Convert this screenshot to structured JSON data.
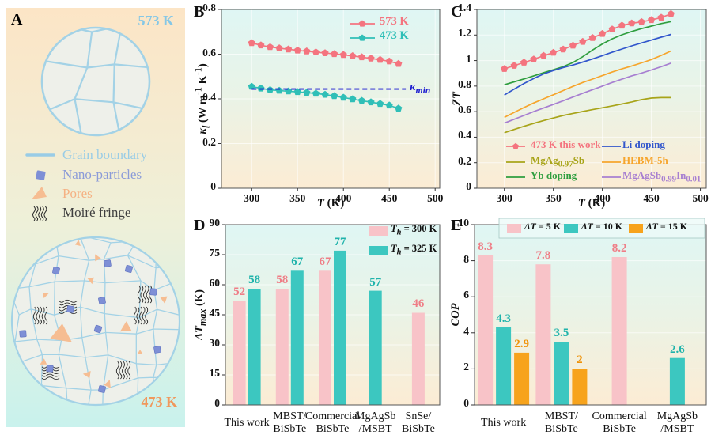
{
  "style": {
    "page_bg": "#ffffff",
    "plot_bg": [
      "#dff6f4",
      "#eaf3e6",
      "#fcecd4"
    ],
    "panel_a_bg": [
      "#fce5c6",
      "#eef0d9",
      "#c9f2ed"
    ],
    "frame_color": "#555555",
    "grid_color": "#ffffff"
  },
  "panel_a": {
    "label": "A",
    "top_circle_label": "573 K",
    "top_label_color": "#85c7e6",
    "bottom_circle_label": "473 K",
    "bottom_label_color": "#f0985c",
    "boundary_color": "#a3d2e6",
    "grain_fill": "#eef0ea",
    "particle_color": "#7e8fd6",
    "pore_color": "#f6bd92",
    "fringe_color": "#2a2a2a",
    "legend": [
      {
        "label": "Grain boundary",
        "color": "#99cce6",
        "icon": "line"
      },
      {
        "label": "Nano-particles",
        "color": "#8b9bd8",
        "icon": "square"
      },
      {
        "label": "Pores",
        "color": "#f5b183",
        "icon": "triangle"
      },
      {
        "label": "Moiré fringe",
        "color": "#3f3f3f",
        "icon": "waves"
      }
    ]
  },
  "chart_data": [
    {
      "id": "b",
      "panel_label": "B",
      "type": "line",
      "xlabel": "<i>T</i> (K)",
      "ylabel": "<i>κ<sub>l</sub></i> (W m<sup>-1</sup> K<sup>-1</sup>)",
      "xlim": [
        267,
        505
      ],
      "ylim": [
        0,
        0.8
      ],
      "xticks": [
        300,
        350,
        400,
        450,
        500
      ],
      "yticks": [
        0,
        0.2,
        0.4,
        0.6,
        0.8
      ],
      "grid": true,
      "legend_position": "top-right",
      "x": [
        300,
        310,
        320,
        330,
        340,
        350,
        360,
        370,
        380,
        390,
        400,
        410,
        420,
        430,
        440,
        450,
        460
      ],
      "series": [
        {
          "name": "573 K",
          "color": "#f4747f",
          "marker": "pentagon",
          "values": [
            0.65,
            0.64,
            0.632,
            0.627,
            0.622,
            0.617,
            0.613,
            0.609,
            0.605,
            0.601,
            0.597,
            0.592,
            0.587,
            0.581,
            0.575,
            0.568,
            0.557
          ]
        },
        {
          "name": "473 K",
          "color": "#2fbfb7",
          "marker": "pentagon",
          "values": [
            0.455,
            0.447,
            0.44,
            0.437,
            0.434,
            0.431,
            0.428,
            0.424,
            0.419,
            0.413,
            0.406,
            0.399,
            0.392,
            0.385,
            0.378,
            0.371,
            0.357
          ]
        }
      ],
      "annotations": [
        {
          "type": "hline",
          "label": "<i>κ<sub>min</sub></i>",
          "y": 0.444,
          "x1": 300,
          "x2": 468,
          "color": "#1b1bd0",
          "style": "dashed"
        }
      ]
    },
    {
      "id": "c",
      "panel_label": "C",
      "type": "line",
      "xlabel": "<i>T</i> (K)",
      "ylabel": "<i>ZT</i>",
      "xlim": [
        272,
        506
      ],
      "ylim": [
        0,
        1.4
      ],
      "xticks": [
        300,
        350,
        400,
        450,
        500
      ],
      "yticks": [
        0,
        0.2,
        0.4,
        0.6,
        0.8,
        1,
        1.2,
        1.4
      ],
      "grid": true,
      "legend_position": "bottom-two-columns",
      "x": [
        300,
        310,
        320,
        330,
        340,
        350,
        360,
        370,
        380,
        390,
        400,
        410,
        420,
        430,
        440,
        450,
        460,
        470
      ],
      "series": [
        {
          "name": "473 K this work",
          "color": "#f4747f",
          "marker": "pentagon",
          "values": [
            0.935,
            0.96,
            0.985,
            1.01,
            1.038,
            1.062,
            1.088,
            1.118,
            1.148,
            1.178,
            1.21,
            1.245,
            1.275,
            1.292,
            1.303,
            1.318,
            1.337,
            1.365
          ]
        },
        {
          "name": "MgAg<sub>0.97</sub>Sb",
          "color": "#a8a419",
          "values": [
            0.435,
            0.46,
            0.485,
            0.508,
            0.53,
            0.55,
            0.57,
            0.586,
            0.601,
            0.616,
            0.63,
            0.645,
            0.66,
            0.676,
            0.694,
            0.706,
            0.71,
            0.71
          ]
        },
        {
          "name": "Yb doping",
          "color": "#2f9e3f",
          "values": [
            0.81,
            0.833,
            0.856,
            0.88,
            0.905,
            0.928,
            0.952,
            0.985,
            1.03,
            1.082,
            1.13,
            1.17,
            1.202,
            1.228,
            1.25,
            1.27,
            1.29,
            1.305
          ]
        },
        {
          "name": "Li doping",
          "color": "#3156cc",
          "values": [
            0.73,
            0.776,
            0.82,
            0.86,
            0.895,
            0.922,
            0.945,
            0.965,
            0.988,
            1.012,
            1.038,
            1.065,
            1.09,
            1.115,
            1.138,
            1.16,
            1.183,
            1.205
          ]
        },
        {
          "name": "HEBM-5h",
          "color": "#f6a52c",
          "values": [
            0.555,
            0.594,
            0.632,
            0.668,
            0.7,
            0.732,
            0.765,
            0.798,
            0.828,
            0.855,
            0.882,
            0.91,
            0.935,
            0.958,
            0.982,
            1.008,
            1.04,
            1.075
          ]
        },
        {
          "name": "MgAgSb<sub>0.99</sub>In<sub>0.01</sub>",
          "color": "#a77fd1",
          "values": [
            0.51,
            0.54,
            0.57,
            0.6,
            0.628,
            0.656,
            0.685,
            0.714,
            0.744,
            0.772,
            0.8,
            0.828,
            0.854,
            0.88,
            0.902,
            0.926,
            0.952,
            0.98
          ]
        }
      ],
      "annotations": []
    },
    {
      "id": "d",
      "panel_label": "D",
      "type": "bar",
      "ylabel": "<i>ΔT<sub>max</sub></i> (K)",
      "ylim": [
        0,
        90
      ],
      "yticks": [
        0,
        15,
        30,
        45,
        60,
        75,
        90
      ],
      "grid": true,
      "legend_position": "top-right-box",
      "categories": [
        [
          "This work"
        ],
        [
          "MBST/",
          "BiSbTe"
        ],
        [
          "Commercial",
          "BiSbTe"
        ],
        [
          "MgAgSb",
          "/MSBT"
        ],
        [
          "SnSe/",
          "BiSbTe"
        ]
      ],
      "series": [
        {
          "name": "<i>T<sub>h</sub></i> = 300 K",
          "color": "#f8c3c8",
          "label_color": "#ef7d86",
          "values": [
            52,
            58,
            67,
            null,
            46
          ]
        },
        {
          "name": "<i>T<sub>h</sub></i> = 325 K",
          "color": "#3cc7c0",
          "label_color": "#1fb3ab",
          "values": [
            58,
            67,
            77,
            57,
            null
          ]
        }
      ],
      "annotations": []
    },
    {
      "id": "e",
      "panel_label": "E",
      "type": "bar",
      "ylabel": "<i>COP</i>",
      "ylim": [
        0,
        10
      ],
      "yticks": [
        0,
        2,
        4,
        6,
        8,
        10
      ],
      "grid": true,
      "legend_position": "top-row-box",
      "categories": [
        [
          "This work"
        ],
        [
          "MBST/",
          "BiSbTe"
        ],
        [
          "Commercial",
          "BiSbTe"
        ],
        [
          "MgAgSb",
          "/MSBT"
        ]
      ],
      "series": [
        {
          "name": "<i>ΔT</i> = 5 K",
          "color": "#f8c3c8",
          "label_color": "#ef7d86",
          "values": [
            8.3,
            7.8,
            8.2,
            null
          ]
        },
        {
          "name": "<i>ΔT</i> = 10 K",
          "color": "#3cc7c0",
          "label_color": "#1fb3ab",
          "values": [
            4.3,
            3.5,
            null,
            2.6
          ]
        },
        {
          "name": "<i>ΔT</i> = 15 K",
          "color": "#f7a31c",
          "label_color": "#ef9208",
          "values": [
            2.9,
            2,
            null,
            null
          ]
        }
      ],
      "annotations": []
    }
  ]
}
